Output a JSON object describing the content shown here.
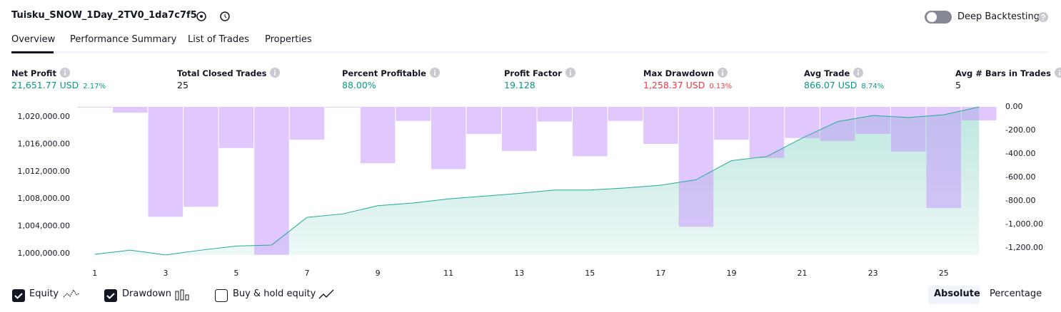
{
  "header": {
    "title": "Tuisku_SNOW_1Day_2TV0_1da7c7f5",
    "deep_backtesting": "Deep Backtesting"
  },
  "tabs": [
    "Overview",
    "Performance Summary",
    "List of Trades",
    "Properties"
  ],
  "stats": [
    {
      "label": "Net Profit",
      "value": "21,651.77 USD",
      "percent": "2.17%"
    },
    {
      "label": "Total Closed Trades",
      "value": "25"
    },
    {
      "label": "Percent Profitable",
      "value": "88.00%"
    },
    {
      "label": "Profit Factor",
      "value": "19.128"
    },
    {
      "label": "Max Drawdown",
      "value": "1,258.37 USD",
      "percent": "0.13%"
    },
    {
      "label": "Avg Trade",
      "value": "866.07 USD",
      "percent": "8.74%"
    },
    {
      "label": "Avg # Bars in Trades",
      "value": "5"
    }
  ],
  "chart_data": {
    "type": "equity-drawdown",
    "x": [
      1,
      2,
      3,
      4,
      5,
      6,
      7,
      8,
      9,
      10,
      11,
      12,
      13,
      14,
      15,
      16,
      17,
      18,
      19,
      20,
      21,
      22,
      23,
      24,
      25,
      26
    ],
    "xlim": [
      0.5,
      26.5
    ],
    "xticks": [
      1,
      3,
      5,
      7,
      9,
      11,
      13,
      15,
      17,
      19,
      21,
      23,
      25
    ],
    "ylim": [
      999790,
      1021460
    ],
    "yticks": [
      {
        "value": 1000000,
        "label": "1,000,000.00"
      },
      {
        "value": 1004000,
        "label": "1,004,000.00"
      },
      {
        "value": 1008000,
        "label": "1,008,000.00"
      },
      {
        "value": 1012000,
        "label": "1,012,000.00"
      },
      {
        "value": 1016000,
        "label": "1,016,000.00"
      },
      {
        "value": 1020000,
        "label": "1,020,000.00"
      }
    ],
    "y2lim": [
      -1260,
      0
    ],
    "y2ticks": [
      {
        "value": 0,
        "label": "0.00"
      },
      {
        "value": -200,
        "label": "-200.00"
      },
      {
        "value": -400,
        "label": "-400.00"
      },
      {
        "value": -600,
        "label": "-600.00"
      },
      {
        "value": -800,
        "label": "-800.00"
      },
      {
        "value": -1000,
        "label": "-1,000.00"
      },
      {
        "value": -1200,
        "label": "-1,200.00"
      }
    ],
    "series": [
      {
        "name": "Equity",
        "color": "#22ab94",
        "values": [
          999900,
          1000500,
          999800,
          1000500,
          1001100,
          1001250,
          1005300,
          1005800,
          1007000,
          1007400,
          1008000,
          1008400,
          1008800,
          1009300,
          1009300,
          1009600,
          1010000,
          1010800,
          1013600,
          1014200,
          1016900,
          1019300,
          1020200,
          1019900,
          1020300,
          1021450
        ]
      },
      {
        "name": "Drawdown",
        "color": "#c79bfb",
        "axis": "y2",
        "values": [
          0,
          -50,
          -935,
          -850,
          -350,
          -1258,
          -280,
          0,
          -480,
          -120,
          -530,
          -230,
          -375,
          -125,
          -420,
          -120,
          -315,
          -1020,
          -280,
          -435,
          -265,
          -290,
          -230,
          -380,
          -860,
          -115
        ]
      }
    ]
  },
  "controls": {
    "buy_hold": "Buy & hold equity",
    "absolute": "Absolute",
    "percentage": "Percentage"
  }
}
